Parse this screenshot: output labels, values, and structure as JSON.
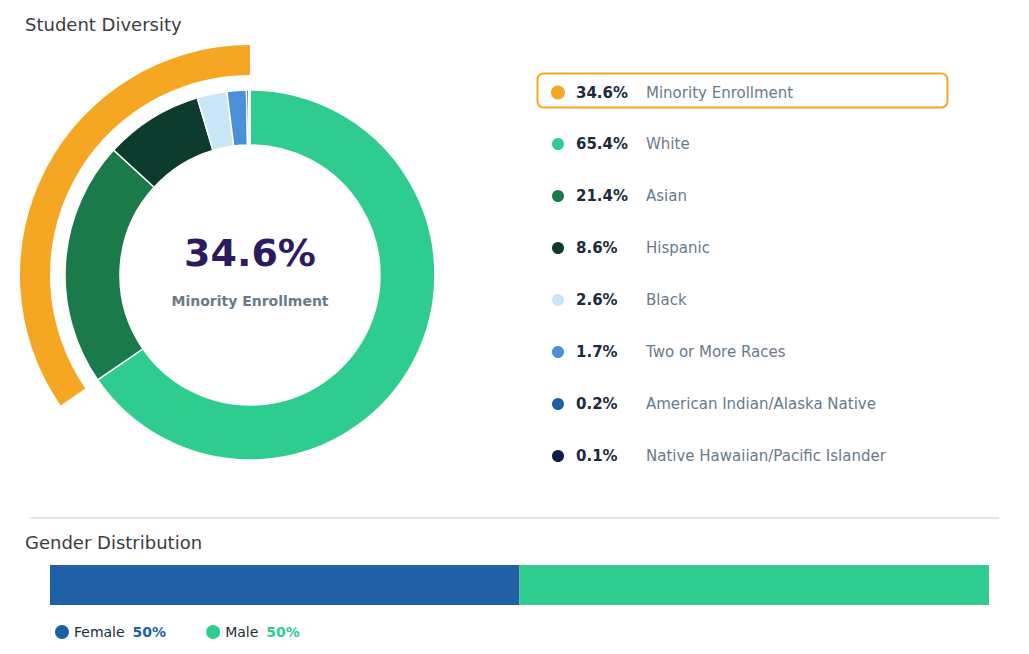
{
  "chart_data": [
    {
      "type": "pie",
      "title": "Student Diversity",
      "legend": "right",
      "series": [
        {
          "type": "bar",
          "categories": [
            "Minority Enrollment"
          ],
          "values": [
            34.6
          ],
          "value_labels": [
            "34.6%"
          ],
          "color": "#F5A623"
        },
        {
          "type": "pie",
          "categories": [
            "White",
            "Asian",
            "Hispanic",
            "Black",
            "Two or More Races",
            "American Indian/Alaska Native",
            "Native Hawaiian/Pacific Islander"
          ],
          "values": [
            65.4,
            21.4,
            8.6,
            2.6,
            1.7,
            0.2,
            0.1
          ],
          "value_labels": [
            "65.4%",
            "21.4%",
            "8.6%",
            "2.6%",
            "1.7%",
            "0.2%",
            "0.1%"
          ],
          "colors": [
            "#2ECC8E",
            "#1A7A4A",
            "#0D3B2E",
            "#C8E6F5",
            "#4A90D9",
            "#1F5FA6",
            "#0D1B4B"
          ]
        }
      ],
      "annotations": [
        {
          "text": "34.6%",
          "color": "#2D1B5E"
        },
        {
          "text": "Minority Enrollment",
          "color": "#6A7A8A"
        }
      ]
    },
    {
      "type": "bar",
      "title": "Gender Distribution",
      "orientation": "horizontal",
      "stacked": true,
      "categories": [
        null
      ],
      "series": [
        {
          "name": "Female",
          "values": [
            50
          ],
          "value_labels": [
            "50%"
          ],
          "color": "#1F5FA6"
        },
        {
          "name": "Male",
          "values": [
            50
          ],
          "value_labels": [
            "50%"
          ],
          "color": "#2ECC8E"
        }
      ],
      "xlim": [
        0,
        100
      ],
      "tick_labels": false,
      "grid": false,
      "legend": "bottom"
    }
  ]
}
